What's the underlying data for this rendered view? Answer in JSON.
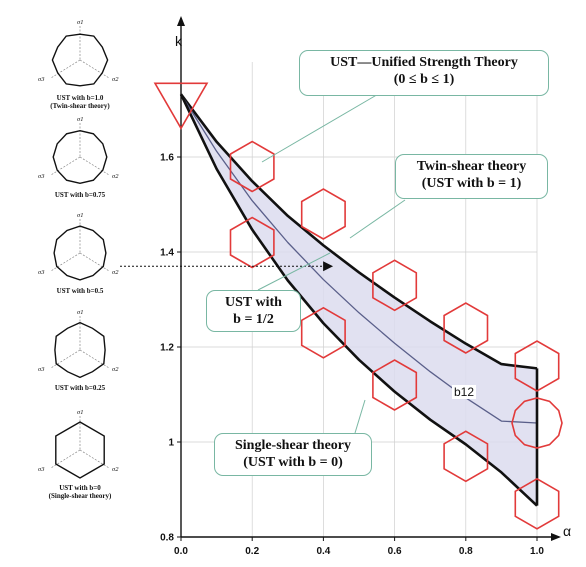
{
  "chart_data": {
    "type": "line",
    "xlabel": "α",
    "ylabel": "k",
    "xlim": [
      0.0,
      1.0
    ],
    "ylim": [
      0.8,
      1.8
    ],
    "x_ticks": [
      "0.0",
      "0.2",
      "0.4",
      "0.6",
      "0.8",
      "1.0"
    ],
    "y_ticks": [
      "0.8",
      "1",
      "1.2",
      "1.4",
      "1.6"
    ],
    "grid": true,
    "x": [
      0.0,
      0.1,
      0.2,
      0.3,
      0.4,
      0.5,
      0.6,
      0.7,
      0.8,
      0.9,
      1.0
    ],
    "series": [
      {
        "name": "Twin-shear theory (UST with b = 1)",
        "values": [
          1.732,
          1.632,
          1.549,
          1.476,
          1.414,
          1.357,
          1.304,
          1.254,
          1.207,
          1.164,
          1.155
        ]
      },
      {
        "name": "UST with b = 1/2",
        "values": [
          1.732,
          1.612,
          1.508,
          1.42,
          1.342,
          1.272,
          1.208,
          1.148,
          1.093,
          1.044,
          1.04
        ]
      },
      {
        "name": "Single-shear theory (UST with b = 0)",
        "values": [
          1.732,
          1.575,
          1.447,
          1.34,
          1.25,
          1.173,
          1.106,
          1.047,
          0.995,
          0.936,
          0.866
        ]
      }
    ],
    "annotations": {
      "title": [
        "UST—Unified Strength Theory",
        "(0 ≤ b ≤ 1)"
      ],
      "twin_shear": [
        "Twin-shear theory",
        "(UST with b = 1)"
      ],
      "ust_half": [
        "UST with",
        "b = 1/2"
      ],
      "single_shear": [
        "Single-shear theory",
        "(UST with b = 0)"
      ],
      "b12": "b12"
    },
    "arrow_k": 1.37,
    "hexagon_markers": [
      {
        "x": 0.0,
        "y": 1.732,
        "shape": "triangle"
      },
      {
        "x": 0.2,
        "y": 1.58,
        "shape": "hexagon"
      },
      {
        "x": 0.2,
        "y": 1.42,
        "shape": "hexagon"
      },
      {
        "x": 0.4,
        "y": 1.48,
        "shape": "hexagon"
      },
      {
        "x": 0.4,
        "y": 1.23,
        "shape": "hexagon"
      },
      {
        "x": 0.6,
        "y": 1.33,
        "shape": "hexagon"
      },
      {
        "x": 0.6,
        "y": 1.12,
        "shape": "hexagon"
      },
      {
        "x": 0.8,
        "y": 1.24,
        "shape": "hexagon"
      },
      {
        "x": 0.8,
        "y": 0.97,
        "shape": "hexagon"
      },
      {
        "x": 1.0,
        "y": 1.16,
        "shape": "hexagon"
      },
      {
        "x": 1.0,
        "y": 1.04,
        "shape": "dodecagon"
      },
      {
        "x": 1.0,
        "y": 0.87,
        "shape": "hexagon"
      }
    ]
  },
  "thumbnails": [
    {
      "caption": [
        "UST with b=1.0",
        "(Twin-shear theory)"
      ],
      "b": 1.0
    },
    {
      "caption": [
        "UST with b=0.75"
      ],
      "b": 0.75
    },
    {
      "caption": [
        "UST with b=0.5"
      ],
      "b": 0.5
    },
    {
      "caption": [
        "UST with b=0.25"
      ],
      "b": 0.25
    },
    {
      "caption": [
        "UST with b=0",
        "(Single-shear theory)"
      ],
      "b": 0.0
    }
  ],
  "sigma_labels": {
    "s1": "σ1",
    "s2": "σ2",
    "s3": "σ3"
  },
  "colors": {
    "twin": "#111111",
    "mid": "#5a5f8a",
    "single": "#111111",
    "fill": "#dcdcee",
    "marker": "#e23a3a",
    "callout_border": "#79b7a3",
    "grid": "#cfcfcf"
  }
}
